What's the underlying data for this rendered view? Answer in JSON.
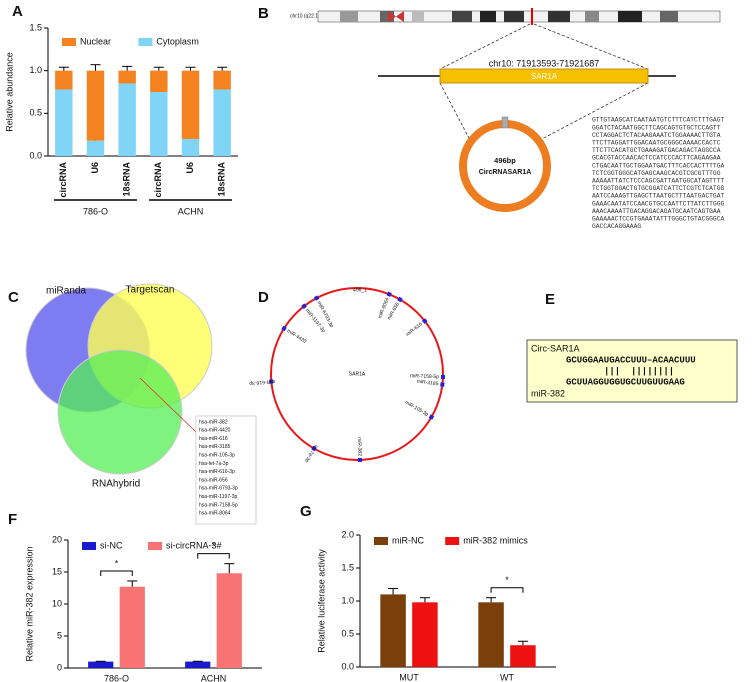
{
  "chart_data": [
    {
      "type": "bar",
      "letter": "A",
      "stacked": true,
      "ylabel": "Relative abundance",
      "categories": [
        "circRNA",
        "U6",
        "18sRNA",
        "circRNA",
        "U6",
        "18sRNA"
      ],
      "group_labels": [
        "786-O",
        "ACHN"
      ],
      "series": [
        {
          "name": "Cytoplasm",
          "color": "#80d4f6",
          "values": [
            0.78,
            0.18,
            0.85,
            0.75,
            0.2,
            0.78
          ],
          "errors": [
            0.04,
            0.04,
            0.05,
            0.04,
            0.03,
            0.05
          ]
        },
        {
          "name": "Nuclear",
          "color": "#f58220",
          "values": [
            0.22,
            0.82,
            0.15,
            0.25,
            0.8,
            0.22
          ],
          "errors": [
            0.04,
            0.07,
            0.05,
            0.04,
            0.04,
            0.04
          ]
        }
      ],
      "legend_order": [
        1,
        0
      ],
      "ylim": [
        0,
        1.5
      ],
      "yticks": [
        {
          "value": 0,
          "label": "0.0"
        },
        {
          "value": 0.5,
          "label": "0.5"
        },
        {
          "value": 1,
          "label": "1.0"
        },
        {
          "value": 1.5,
          "label": "1.5"
        }
      ]
    },
    {
      "type": "bar",
      "letter": "F",
      "ylabel": "Relative miR-382 expression",
      "categories": [
        "786-O",
        "ACHN"
      ],
      "series": [
        {
          "name": "si-NC",
          "color": "#1a1acc",
          "values": [
            1,
            1
          ],
          "errors": [
            0.05,
            0.05
          ]
        },
        {
          "name": "si-circRNA-3#",
          "color": "#f87474",
          "values": [
            12.7,
            14.8
          ],
          "errors": [
            0.9,
            1.5
          ]
        }
      ],
      "significance": [
        "*",
        "*"
      ],
      "ylim": [
        0,
        20
      ],
      "yticks": [
        0,
        5,
        10,
        15,
        20
      ]
    },
    {
      "type": "bar",
      "letter": "G",
      "ylabel": "Relative luciferase activity",
      "categories": [
        "MUT",
        "WT"
      ],
      "series": [
        {
          "name": "miR-NC",
          "color": "#7b3f0c",
          "values": [
            1.1,
            0.98
          ],
          "errors": [
            0.09,
            0.07
          ]
        },
        {
          "name": "miR-382 mimics",
          "color": "#ee1111",
          "values": [
            0.98,
            0.33
          ],
          "errors": [
            0.07,
            0.06
          ]
        }
      ],
      "significance": [
        null,
        "*"
      ],
      "ylim": [
        0,
        2
      ],
      "yticks": [
        {
          "value": 0,
          "label": "0.0"
        },
        {
          "value": 0.5,
          "label": "0.5"
        },
        {
          "value": 1,
          "label": "1.0"
        },
        {
          "value": 1.5,
          "label": "1.5"
        },
        {
          "value": 2,
          "label": "2.0"
        }
      ]
    }
  ],
  "panel_b": {
    "letter": "B",
    "chromosome": "chr10 (q22.1)",
    "locus": "chr10: 71913593-71921687",
    "gene": "SAR1A",
    "size": "496bp",
    "circ_name": "CircRNASAR1A",
    "sequence": [
      "GTTGTAAGCATCAATAATGTCTTTCATCTTTGAGT",
      "GGATCTACAATGGCTTCAGCAGTGTGCTCCAGTT",
      "CCTAGGACTCTACAAGAAATCTGGAAAACTTGTA",
      "TTCTTAGGATTGGACAATGCGGGCAAAACCACTC",
      "TTCTTCACATGCTGAAAGATGACAGACTAGGCCA",
      "GCACGTACCAACACTCCATCCCACTTCAGAAGAA",
      "CTGACAATTGCTGGAATGACTTTCACCACTTTTGA",
      "TCTCGGTGGGCATGAGCAAGCACGTCGCGTTTGG",
      "AAAAATTATCTCCCAGCGATTAATGGCATAGTTTT",
      "TCTGGTGGACTGTGCGGATCATTCTCGTCTCATGG",
      "AATCCAAAGTTGAGCTTAATGCTTTAATGACTGAT",
      "GAAACAATATCCAACGTGCCAATTCTTATCTTGGG",
      "AAACAAAATTGACAGGACAGATGCAATCAGTGAA",
      "GAAAAACTCCGTGAAATATTTGGGCTGTACGGGCA",
      "GACCACAGGAAAG"
    ]
  },
  "panel_c": {
    "letter": "C",
    "sets": [
      "miRanda",
      "Targetscan",
      "RNAhybrid"
    ],
    "overlap": [
      "hsa-miR-382",
      "hsa-miR-4420",
      "hsa-miR-616",
      "hsa-miR-3185",
      "hsa-miR-105-3p",
      "hsa-let-7a-3p",
      "hsa-miR-616-3p",
      "hsa-miR-656",
      "hsa-miR-6793-3p",
      "hsa-miR-1197-3p",
      "hsa-miR-7158-5p",
      "hsa-miR-8064"
    ]
  },
  "panel_d": {
    "letter": "D",
    "center": "SAR1A",
    "top": "496_1",
    "sites": [
      "miR-4420",
      "miR-1197-3p",
      "miR-6793-3p",
      "miR-8064",
      "miR-656",
      "miR-616",
      "miR-7158-5p",
      "miR-3185",
      "miR-105-3p",
      "miR-382",
      "let-7a-3p",
      "miR-616-3p"
    ]
  },
  "panel_e": {
    "letter": "E",
    "circ": "Circ-SAR1A",
    "circ_seq": "GCUGGAAUGACCUUU–ACAACUUU",
    "pairing": "|||  ||||||||",
    "mir_seq": "GCUUAGGUGGUGCUUGUUGAAG",
    "mir": "miR-382"
  }
}
